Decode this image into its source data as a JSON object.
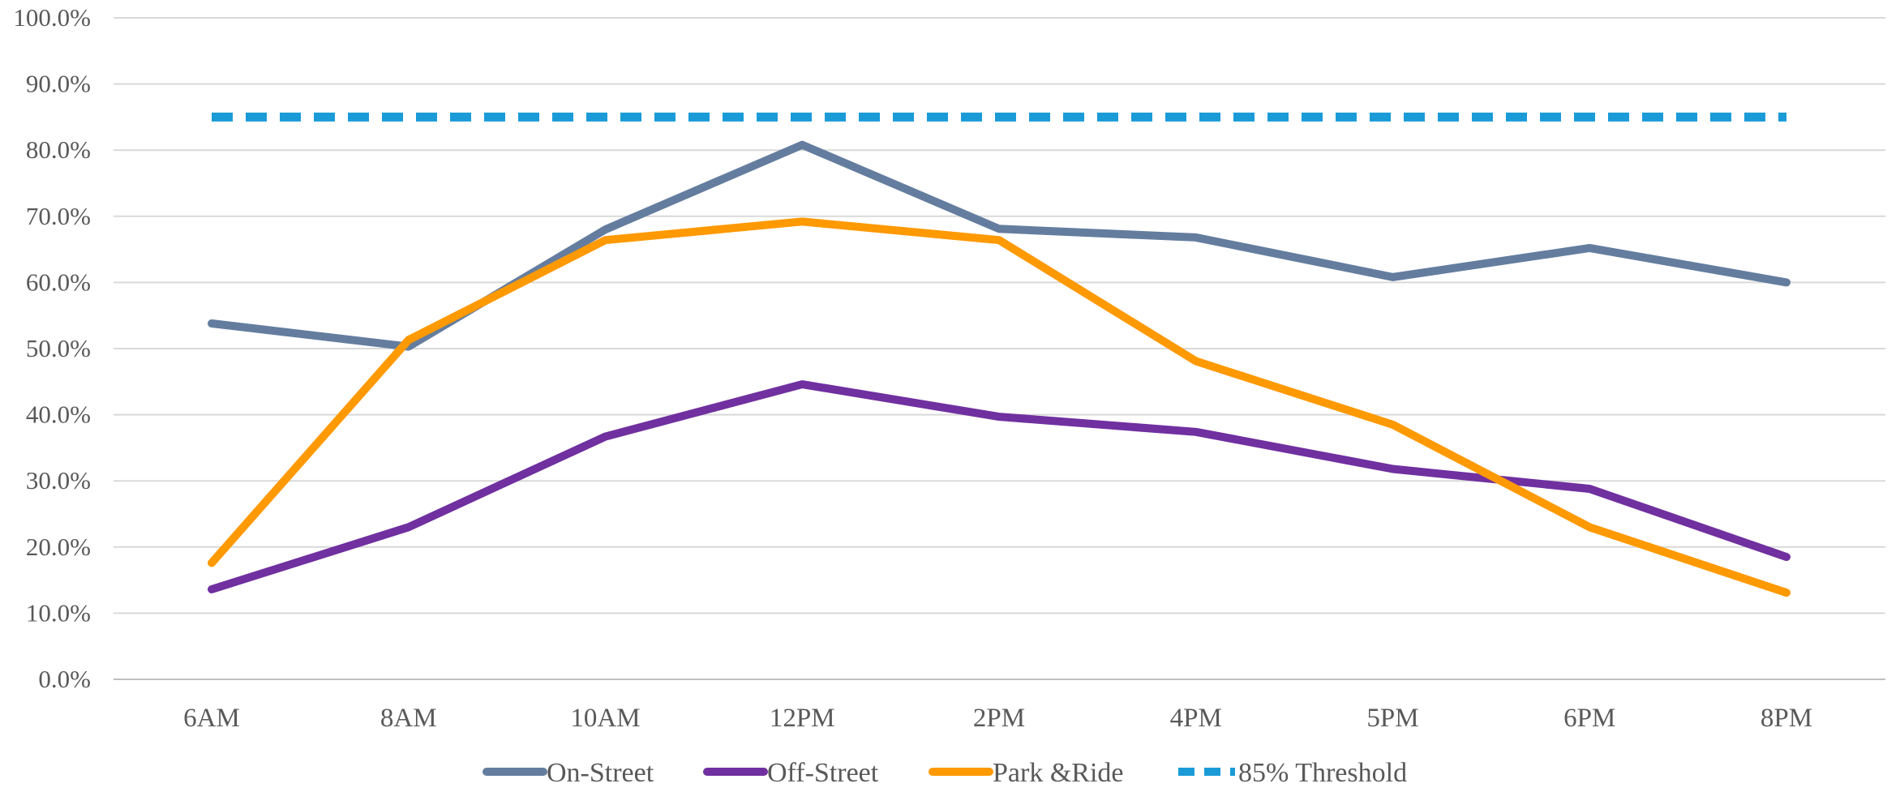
{
  "chart_data": {
    "type": "line",
    "categories": [
      "6AM",
      "8AM",
      "10AM",
      "12PM",
      "2PM",
      "4PM",
      "5PM",
      "6PM",
      "8PM"
    ],
    "y_ticks": [
      "0.0%",
      "10.0%",
      "20.0%",
      "30.0%",
      "40.0%",
      "50.0%",
      "60.0%",
      "70.0%",
      "80.0%",
      "90.0%",
      "100.0%"
    ],
    "ylim": [
      0,
      100
    ],
    "y_unit": "%",
    "grid": true,
    "legend_position": "bottom",
    "title": "",
    "xlabel": "",
    "ylabel": "",
    "series": [
      {
        "name": "On-Street",
        "color": "#647d9f",
        "style": "solid",
        "values": [
          53.8,
          50.3,
          68.0,
          80.8,
          68.1,
          66.8,
          60.8,
          65.2,
          60.0
        ]
      },
      {
        "name": "Off-Street",
        "color": "#7030a0",
        "style": "solid",
        "values": [
          13.6,
          23.0,
          36.7,
          44.6,
          39.7,
          37.4,
          31.8,
          28.8,
          18.5
        ]
      },
      {
        "name": "Park &Ride",
        "color": "#ff9900",
        "style": "solid",
        "values": [
          17.6,
          51.3,
          66.4,
          69.2,
          66.4,
          48.1,
          38.5,
          23.0,
          13.1
        ]
      },
      {
        "name": "85% Threshold",
        "color": "#1a9bd7",
        "style": "dashed",
        "values": [
          85,
          85,
          85,
          85,
          85,
          85,
          85,
          85,
          85
        ]
      }
    ]
  }
}
